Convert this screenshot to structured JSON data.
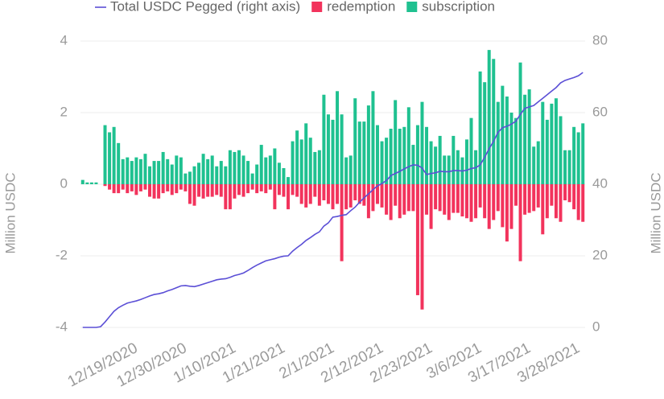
{
  "chart_data": {
    "type": "bar",
    "ylabel": "Million USDC",
    "y2label": "Million USDC",
    "ylim": [
      -4,
      4
    ],
    "yticks": [
      -4,
      -2,
      0,
      2,
      4
    ],
    "y2lim": [
      0,
      80
    ],
    "y2ticks": [
      0,
      20,
      40,
      60,
      80
    ],
    "grid": true,
    "legend": "top",
    "categories": [
      null,
      null,
      null,
      null,
      null,
      null,
      null,
      null,
      null,
      null,
      null,
      "12/19/2020",
      null,
      null,
      null,
      null,
      null,
      null,
      null,
      null,
      null,
      null,
      "12/30/2020",
      null,
      null,
      null,
      null,
      null,
      null,
      null,
      null,
      null,
      null,
      "1/10/2021",
      null,
      null,
      null,
      null,
      null,
      null,
      null,
      null,
      null,
      null,
      "1/21/2021",
      null,
      null,
      null,
      null,
      null,
      null,
      null,
      null,
      null,
      null,
      "2/1/2021",
      null,
      null,
      null,
      null,
      null,
      null,
      null,
      null,
      null,
      null,
      "2/12/2021",
      null,
      null,
      null,
      null,
      null,
      null,
      null,
      null,
      null,
      null,
      "2/23/2021",
      null,
      null,
      null,
      null,
      null,
      null,
      null,
      null,
      null,
      null,
      "3/6/2021",
      null,
      null,
      null,
      null,
      null,
      null,
      null,
      null,
      null,
      null,
      "3/17/2021",
      null,
      null,
      null,
      null,
      null,
      null,
      null,
      null,
      null,
      null,
      "3/28/2021",
      null,
      null
    ],
    "series": [
      {
        "name": "Total USDC Pegged (right axis)",
        "type": "line",
        "axis": "y2",
        "color": "#5b4fd6",
        "values": [
          0,
          0,
          0,
          0,
          0.2,
          1.5,
          3,
          4.5,
          5.5,
          6.2,
          6.8,
          7.1,
          7.4,
          7.8,
          8.3,
          8.8,
          9.2,
          9.4,
          9.7,
          10.2,
          10.6,
          11.1,
          11.6,
          11.7,
          11.5,
          11.4,
          11.7,
          12.1,
          12.5,
          12.9,
          13.3,
          13.5,
          13.6,
          14.0,
          14.5,
          14.8,
          15.2,
          15.9,
          16.7,
          17.4,
          18.0,
          18.6,
          18.9,
          19.2,
          19.6,
          19.9,
          20.0,
          21.3,
          22.3,
          23.2,
          24.3,
          25.1,
          26.0,
          26.7,
          28.3,
          29.2,
          30.8,
          31.0,
          31.3,
          31.5,
          32.6,
          33.6,
          35.0,
          36.2,
          37.3,
          38.5,
          39.5,
          40.2,
          41.0,
          42.4,
          43.0,
          43.6,
          44.3,
          44.9,
          45.4,
          45.3,
          44.5,
          42.7,
          43.0,
          43.2,
          43.6,
          43.5,
          43.5,
          43.8,
          43.8,
          43.7,
          43.9,
          44.4,
          44.6,
          45.4,
          47.5,
          49.9,
          52.0,
          54.5,
          55.8,
          56.2,
          56.8,
          57.6,
          59.5,
          61.2,
          61.6,
          62.0,
          63.0,
          64.0,
          65.0,
          66.0,
          67.0,
          68.3,
          69.0,
          69.4,
          69.8,
          70.3,
          71.2
        ]
      },
      {
        "name": "redemption",
        "type": "bar",
        "color": "#f2335c",
        "values": [
          0,
          0,
          0,
          0,
          0,
          -0.05,
          -0.15,
          -0.25,
          -0.25,
          -0.15,
          -0.25,
          -0.2,
          -0.3,
          -0.2,
          -0.15,
          -0.35,
          -0.4,
          -0.4,
          -0.25,
          -0.2,
          -0.3,
          -0.25,
          -0.15,
          -0.2,
          -0.55,
          -0.6,
          -0.35,
          -0.4,
          -0.35,
          -0.35,
          -0.3,
          -0.35,
          -0.7,
          -0.7,
          -0.4,
          -0.3,
          -0.35,
          -0.25,
          -0.15,
          -0.25,
          -0.2,
          -0.25,
          -0.15,
          -0.7,
          -0.3,
          -0.35,
          -0.7,
          -0.3,
          -0.35,
          -0.55,
          -0.65,
          -0.55,
          -0.35,
          -0.6,
          -0.45,
          -0.55,
          -0.7,
          -0.55,
          -2.15,
          -0.7,
          -0.65,
          -0.45,
          -0.55,
          -0.6,
          -0.95,
          -0.75,
          -0.55,
          -0.65,
          -0.85,
          -1.0,
          -0.6,
          -0.95,
          -0.85,
          -0.75,
          -0.75,
          -3.1,
          -3.5,
          -0.85,
          -1.25,
          -0.7,
          -0.75,
          -0.85,
          -1.0,
          -0.8,
          -0.8,
          -0.9,
          -0.95,
          -1.05,
          -0.95,
          -0.65,
          -0.95,
          -1.25,
          -1.0,
          -0.75,
          -1.2,
          -1.6,
          -1.25,
          -0.6,
          -2.15,
          -0.85,
          -0.8,
          -0.75,
          -0.65,
          -1.4,
          -0.95,
          -0.6,
          -0.95,
          -1.05,
          -0.45,
          -0.5,
          -0.7,
          -1.0,
          -1.05
        ]
      },
      {
        "name": "subscription",
        "type": "bar",
        "color": "#1fc190",
        "values": [
          0.12,
          0.05,
          0.05,
          0.05,
          0,
          1.65,
          1.45,
          1.6,
          1.15,
          0.7,
          0.75,
          0.65,
          0.75,
          0.7,
          0.85,
          0.5,
          0.65,
          0.65,
          0.9,
          0.7,
          0.55,
          0.8,
          0.75,
          0.3,
          0.35,
          0.5,
          0.6,
          0.85,
          0.7,
          0.8,
          0.5,
          0.65,
          0.5,
          0.95,
          0.9,
          0.95,
          0.8,
          0.65,
          0.3,
          0.55,
          1.1,
          0.75,
          0.8,
          1.0,
          0.6,
          0.45,
          0.2,
          1.2,
          1.5,
          1.25,
          1.7,
          1.3,
          0.9,
          0.95,
          2.5,
          1.95,
          1.8,
          2.6,
          1.95,
          0.75,
          0.8,
          2.4,
          1.75,
          1.75,
          2.2,
          2.6,
          1.65,
          1.2,
          1.3,
          1.55,
          2.35,
          1.55,
          1.6,
          2.15,
          1.1,
          1.65,
          2.3,
          1.6,
          1.2,
          1.05,
          1.35,
          0.8,
          0.8,
          1.35,
          0.95,
          0.75,
          1.25,
          1.85,
          0.95,
          3.15,
          2.85,
          3.75,
          3.5,
          2.3,
          2.75,
          2.45,
          2.0,
          1.85,
          3.4,
          2.5,
          2.65,
          1.05,
          1.2,
          2.3,
          1.8,
          2.25,
          2.4,
          1.9,
          0.95,
          0.95,
          1.6,
          1.45,
          1.7
        ]
      }
    ]
  }
}
